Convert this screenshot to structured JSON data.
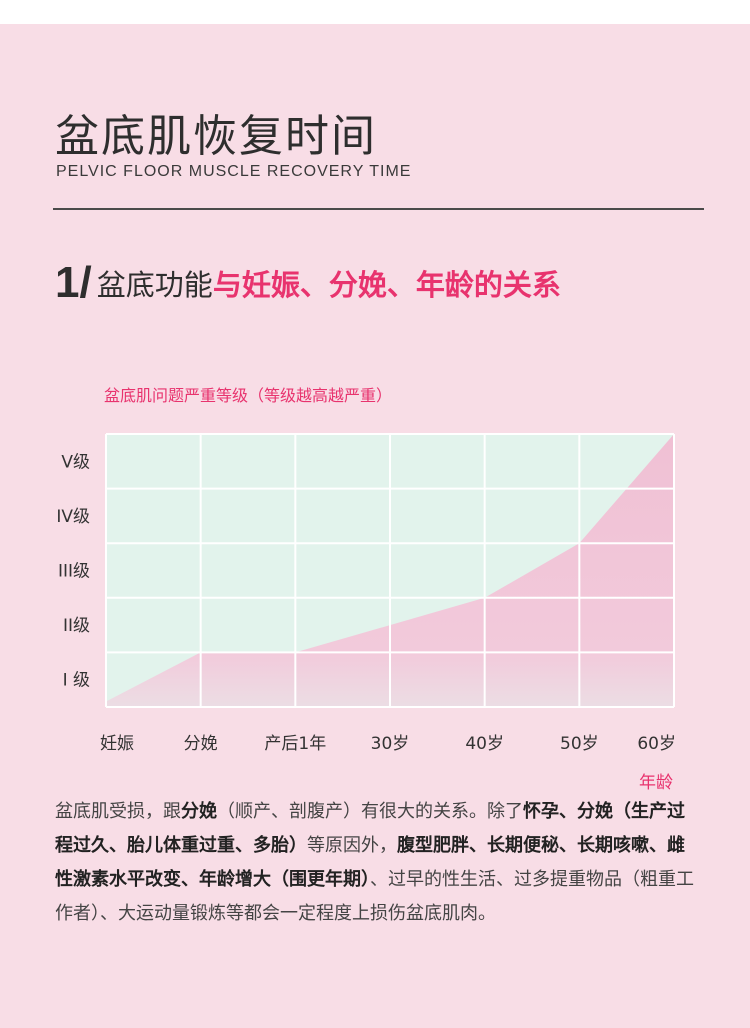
{
  "header": {
    "title": "盆底肌恢复时间",
    "subtitle": "PELVIC FLOOR MUSCLE RECOVERY TIME"
  },
  "section": {
    "number": "1/",
    "title_plain": "盆底功能",
    "title_accent": "与妊娠、分娩、年龄的关系"
  },
  "colors": {
    "accent": "#e8336e",
    "background": "#f8dde6",
    "chart_plot_bg": "#e2f3ec",
    "chart_area_fill": "#f0c3d6"
  },
  "chart_data": {
    "type": "area",
    "ylabel": "盆底肌问题严重等级（等级越高越严重）",
    "xlabel": "年龄",
    "categories": [
      "妊娠",
      "分娩",
      "产后1年",
      "30岁",
      "40岁",
      "50岁",
      "60岁"
    ],
    "y_ticks": [
      "I 级",
      "II级",
      "III级",
      "IV级",
      "V级"
    ],
    "ylim": [
      0.5,
      5.5
    ],
    "values": [
      0.6,
      1.5,
      1.5,
      2.0,
      2.5,
      3.5,
      5.5
    ],
    "grid": true,
    "legend": "none"
  },
  "paragraph": [
    {
      "text": "盆底肌受损，跟",
      "bold": false
    },
    {
      "text": "分娩",
      "bold": true
    },
    {
      "text": "（顺产、剖腹产）有很大的关系。除了",
      "bold": false
    },
    {
      "text": "怀孕、分娩（生产过程过久、胎儿体重过重、多胎）",
      "bold": true
    },
    {
      "text": "等原因外，",
      "bold": false
    },
    {
      "text": "腹型肥胖、长期便秘、长期咳嗽、雌性激素水平改变、年龄增大（围更年期）",
      "bold": true
    },
    {
      "text": "、过早的性生活、过多提重物品（粗重工作者）、大运动量锻炼等都会一定程度上损伤盆底肌肉。",
      "bold": false
    }
  ]
}
